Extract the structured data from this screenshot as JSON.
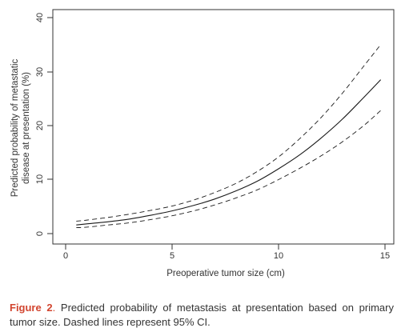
{
  "chart_data": {
    "type": "line",
    "xlabel": "Preoperative tumor size (cm)",
    "ylabel": [
      "Predicted probability of metastatic",
      "disease at presentation (%)"
    ],
    "xlim": [
      0,
      15
    ],
    "ylim": [
      0,
      40
    ],
    "xticks": [
      0,
      5,
      10,
      15
    ],
    "yticks": [
      0,
      10,
      20,
      30,
      40
    ],
    "grid": false,
    "x": [
      0.5,
      1,
      2,
      3,
      4,
      5,
      6,
      7,
      8,
      9,
      10,
      11,
      12,
      13,
      14,
      14.8
    ],
    "series": [
      {
        "line_style": "solid",
        "values": [
          1.6,
          1.8,
          2.2,
          2.7,
          3.4,
          4.2,
          5.2,
          6.4,
          7.9,
          9.7,
          12.0,
          14.6,
          17.7,
          21.2,
          25.2,
          28.5
        ]
      },
      {
        "line_style": "dashed",
        "values": [
          2.3,
          2.5,
          3.0,
          3.6,
          4.3,
          5.1,
          6.2,
          7.6,
          9.3,
          11.5,
          14.2,
          17.6,
          21.5,
          26.0,
          31.0,
          35.0
        ]
      },
      {
        "line_style": "dashed",
        "values": [
          1.1,
          1.2,
          1.6,
          2.0,
          2.6,
          3.3,
          4.2,
          5.3,
          6.6,
          8.1,
          10.0,
          12.1,
          14.4,
          17.0,
          20.0,
          22.8
        ]
      }
    ],
    "line_color": "#1a1a1a"
  },
  "caption": {
    "label": "Figure 2",
    "separator": ".",
    "text": " Predicted probability of metastasis at presentation based on primary tumor size. Dashed lines represent 95% CI."
  }
}
